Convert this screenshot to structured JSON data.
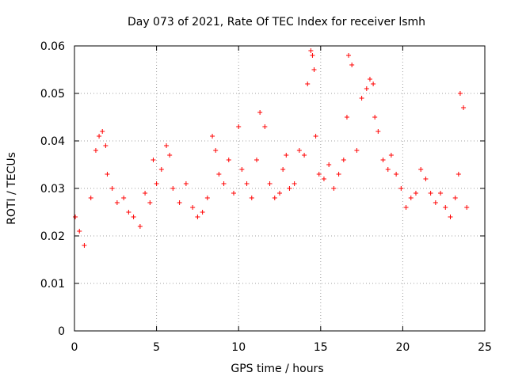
{
  "chart_data": {
    "type": "scatter",
    "title": "Day 073 of 2021, Rate Of TEC Index for receiver lsmh",
    "xlabel": "GPS time / hours",
    "ylabel": "ROTI / TECUs",
    "xlim": [
      0,
      25
    ],
    "ylim": [
      0,
      0.06
    ],
    "x_ticks": [
      "0",
      "5",
      "10",
      "15",
      "20",
      "25"
    ],
    "y_ticks": [
      "0",
      "0.01",
      "0.02",
      "0.03",
      "0.04",
      "0.05",
      "0.06"
    ],
    "grid": true,
    "marker": "+",
    "color": "#ff0000",
    "series": [
      {
        "name": "",
        "x": [
          0.05,
          0.3,
          0.6,
          1.0,
          1.3,
          1.5,
          1.7,
          1.9,
          2.0,
          2.3,
          2.6,
          3.0,
          3.3,
          3.6,
          4.0,
          4.3,
          4.6,
          4.8,
          5.0,
          5.3,
          5.6,
          5.8,
          6.0,
          6.4,
          6.8,
          7.2,
          7.5,
          7.8,
          8.1,
          8.4,
          8.6,
          8.8,
          9.1,
          9.4,
          9.7,
          10.0,
          10.2,
          10.5,
          10.8,
          11.1,
          11.3,
          11.6,
          11.9,
          12.2,
          12.5,
          12.7,
          12.9,
          13.1,
          13.4,
          13.7,
          14.0,
          14.2,
          14.4,
          14.5,
          14.6,
          14.7,
          14.9,
          15.2,
          15.5,
          15.8,
          16.1,
          16.4,
          16.6,
          16.7,
          16.9,
          17.2,
          17.5,
          17.8,
          18.0,
          18.2,
          18.3,
          18.5,
          18.8,
          19.1,
          19.3,
          19.6,
          19.9,
          20.2,
          20.5,
          20.8,
          21.1,
          21.4,
          21.7,
          22.0,
          22.3,
          22.6,
          22.9,
          23.2,
          23.4,
          23.5,
          23.7,
          23.9
        ],
        "y": [
          0.024,
          0.021,
          0.018,
          0.028,
          0.038,
          0.041,
          0.042,
          0.039,
          0.033,
          0.03,
          0.027,
          0.028,
          0.025,
          0.024,
          0.022,
          0.029,
          0.027,
          0.036,
          0.031,
          0.034,
          0.039,
          0.037,
          0.03,
          0.027,
          0.031,
          0.026,
          0.024,
          0.025,
          0.028,
          0.041,
          0.038,
          0.033,
          0.031,
          0.036,
          0.029,
          0.043,
          0.034,
          0.031,
          0.028,
          0.036,
          0.046,
          0.043,
          0.031,
          0.028,
          0.029,
          0.034,
          0.037,
          0.03,
          0.031,
          0.038,
          0.037,
          0.052,
          0.059,
          0.058,
          0.055,
          0.041,
          0.033,
          0.032,
          0.035,
          0.03,
          0.033,
          0.036,
          0.045,
          0.058,
          0.056,
          0.038,
          0.049,
          0.051,
          0.053,
          0.052,
          0.045,
          0.042,
          0.036,
          0.034,
          0.037,
          0.033,
          0.03,
          0.026,
          0.028,
          0.029,
          0.034,
          0.032,
          0.029,
          0.027,
          0.029,
          0.026,
          0.024,
          0.028,
          0.033,
          0.05,
          0.047,
          0.026
        ]
      }
    ]
  }
}
